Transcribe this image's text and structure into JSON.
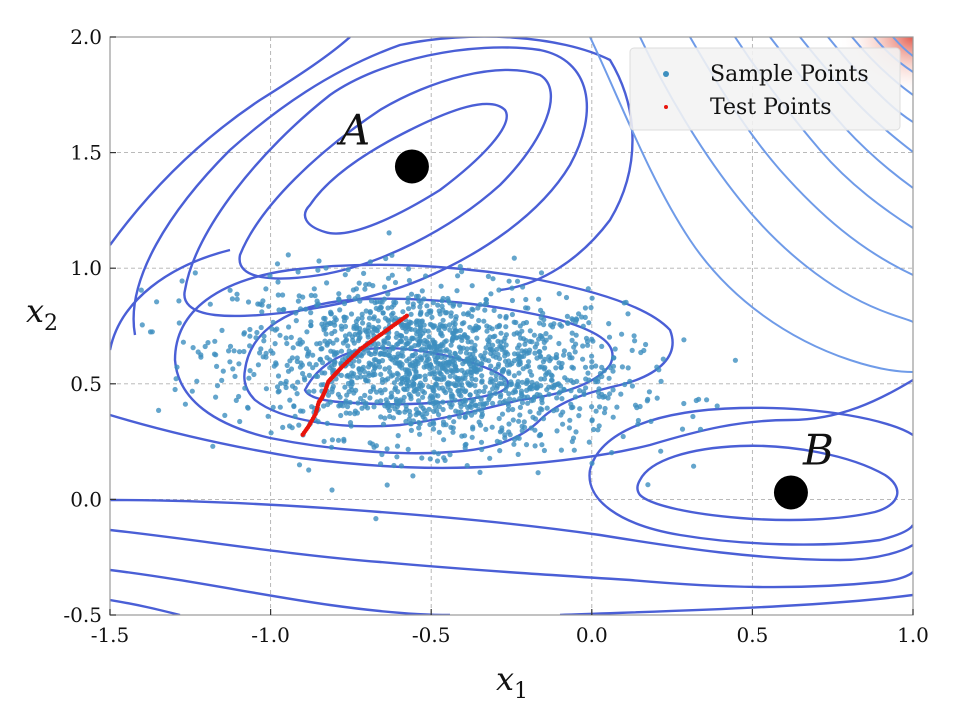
{
  "chart_data": {
    "type": "scatter",
    "title": "",
    "xlabel_base": "x",
    "xlabel_sub": "1",
    "ylabel_base": "x",
    "ylabel_sub": "2",
    "xlim": [
      -1.5,
      1.0
    ],
    "ylim": [
      -0.5,
      2.0
    ],
    "grid": true,
    "x_ticks": [
      -1.5,
      -1.0,
      -0.5,
      0.0,
      0.5,
      1.0
    ],
    "x_tick_labels": [
      "-1.5",
      "-1.0",
      "-0.5",
      "0.0",
      "0.5",
      "1.0"
    ],
    "y_ticks": [
      -0.5,
      0.0,
      0.5,
      1.0,
      1.5,
      2.0
    ],
    "y_tick_labels": [
      "-0.5",
      "0.0",
      "0.5",
      "1.0",
      "1.5",
      "2.0"
    ],
    "legend_position": "top-right",
    "legend": [
      "Sample Points",
      "Test Points"
    ],
    "colors": {
      "sample": "#3d8fbf",
      "test": "#e8140c",
      "contour": "#4a5fd6",
      "contour_light": "#6f9be8",
      "heat": "#e0483a"
    },
    "series": [
      {
        "name": "Sample Points",
        "distribution": {
          "cluster_center": [
            -0.5,
            0.58
          ],
          "x_spread": 0.3,
          "y_spread": 0.17,
          "x_range": [
            -1.45,
            0.55
          ],
          "y_range": [
            -0.45,
            1.45
          ],
          "count": 1700
        }
      },
      {
        "name": "Test Points",
        "x": [
          -0.9,
          -0.88,
          -0.86,
          -0.85,
          -0.84,
          -0.83,
          -0.82,
          -0.8,
          -0.78,
          -0.75,
          -0.72,
          -0.69,
          -0.66,
          -0.63,
          -0.6,
          -0.57
        ],
        "y": [
          0.28,
          0.32,
          0.37,
          0.42,
          0.44,
          0.47,
          0.51,
          0.54,
          0.57,
          0.61,
          0.65,
          0.68,
          0.71,
          0.74,
          0.77,
          0.8
        ]
      }
    ],
    "points": [
      {
        "label": "A",
        "x": -0.56,
        "y": 1.44
      },
      {
        "label": "B",
        "x": 0.62,
        "y": 0.03
      }
    ]
  }
}
